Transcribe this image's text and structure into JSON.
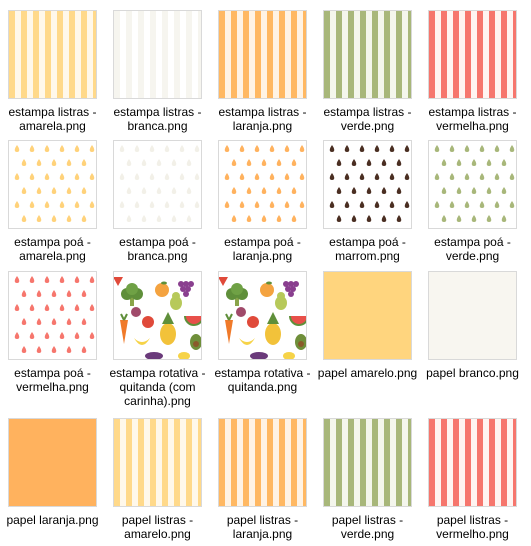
{
  "files": [
    {
      "label": "estampa listras - amarela.png",
      "pattern": "stripes-amarela"
    },
    {
      "label": "estampa listras - branca.png",
      "pattern": "stripes-branca"
    },
    {
      "label": "estampa listras - laranja.png",
      "pattern": "stripes-laranja"
    },
    {
      "label": "estampa listras - verde.png",
      "pattern": "stripes-verde"
    },
    {
      "label": "estampa listras - vermelha.png",
      "pattern": "stripes-vermelha"
    },
    {
      "label": "estampa poá - amarela.png",
      "pattern": "dots",
      "dot_color": "#ffd27a"
    },
    {
      "label": "estampa poá - branca.png",
      "pattern": "dots",
      "dot_color": "#f2f0e8"
    },
    {
      "label": "estampa poá - laranja.png",
      "pattern": "dots",
      "dot_color": "#ffb25e"
    },
    {
      "label": "estampa poá - marrom.png",
      "pattern": "dots",
      "dot_color": "#4a2e22"
    },
    {
      "label": "estampa poá - verde.png",
      "pattern": "dots",
      "dot_color": "#a8b77a"
    },
    {
      "label": "estampa poá - vermelha.png",
      "pattern": "dots",
      "dot_color": "#f6766d"
    },
    {
      "label": "estampa rotativa - quitanda (com carinha).png",
      "pattern": "fruits"
    },
    {
      "label": "estampa rotativa - quitanda.png",
      "pattern": "fruits"
    },
    {
      "label": "papel amarelo.png",
      "pattern": "solid-amarelo"
    },
    {
      "label": "papel branco.png",
      "pattern": "solid-branco"
    },
    {
      "label": "papel laranja.png",
      "pattern": "solid-laranja"
    },
    {
      "label": "papel listras - amarelo.png",
      "pattern": "stripes-amarela"
    },
    {
      "label": "papel listras - laranja.png",
      "pattern": "stripes-laranja"
    },
    {
      "label": "papel listras - verde.png",
      "pattern": "stripes-verde"
    },
    {
      "label": "papel listras - vermelho.png",
      "pattern": "stripes-vermelha"
    }
  ]
}
